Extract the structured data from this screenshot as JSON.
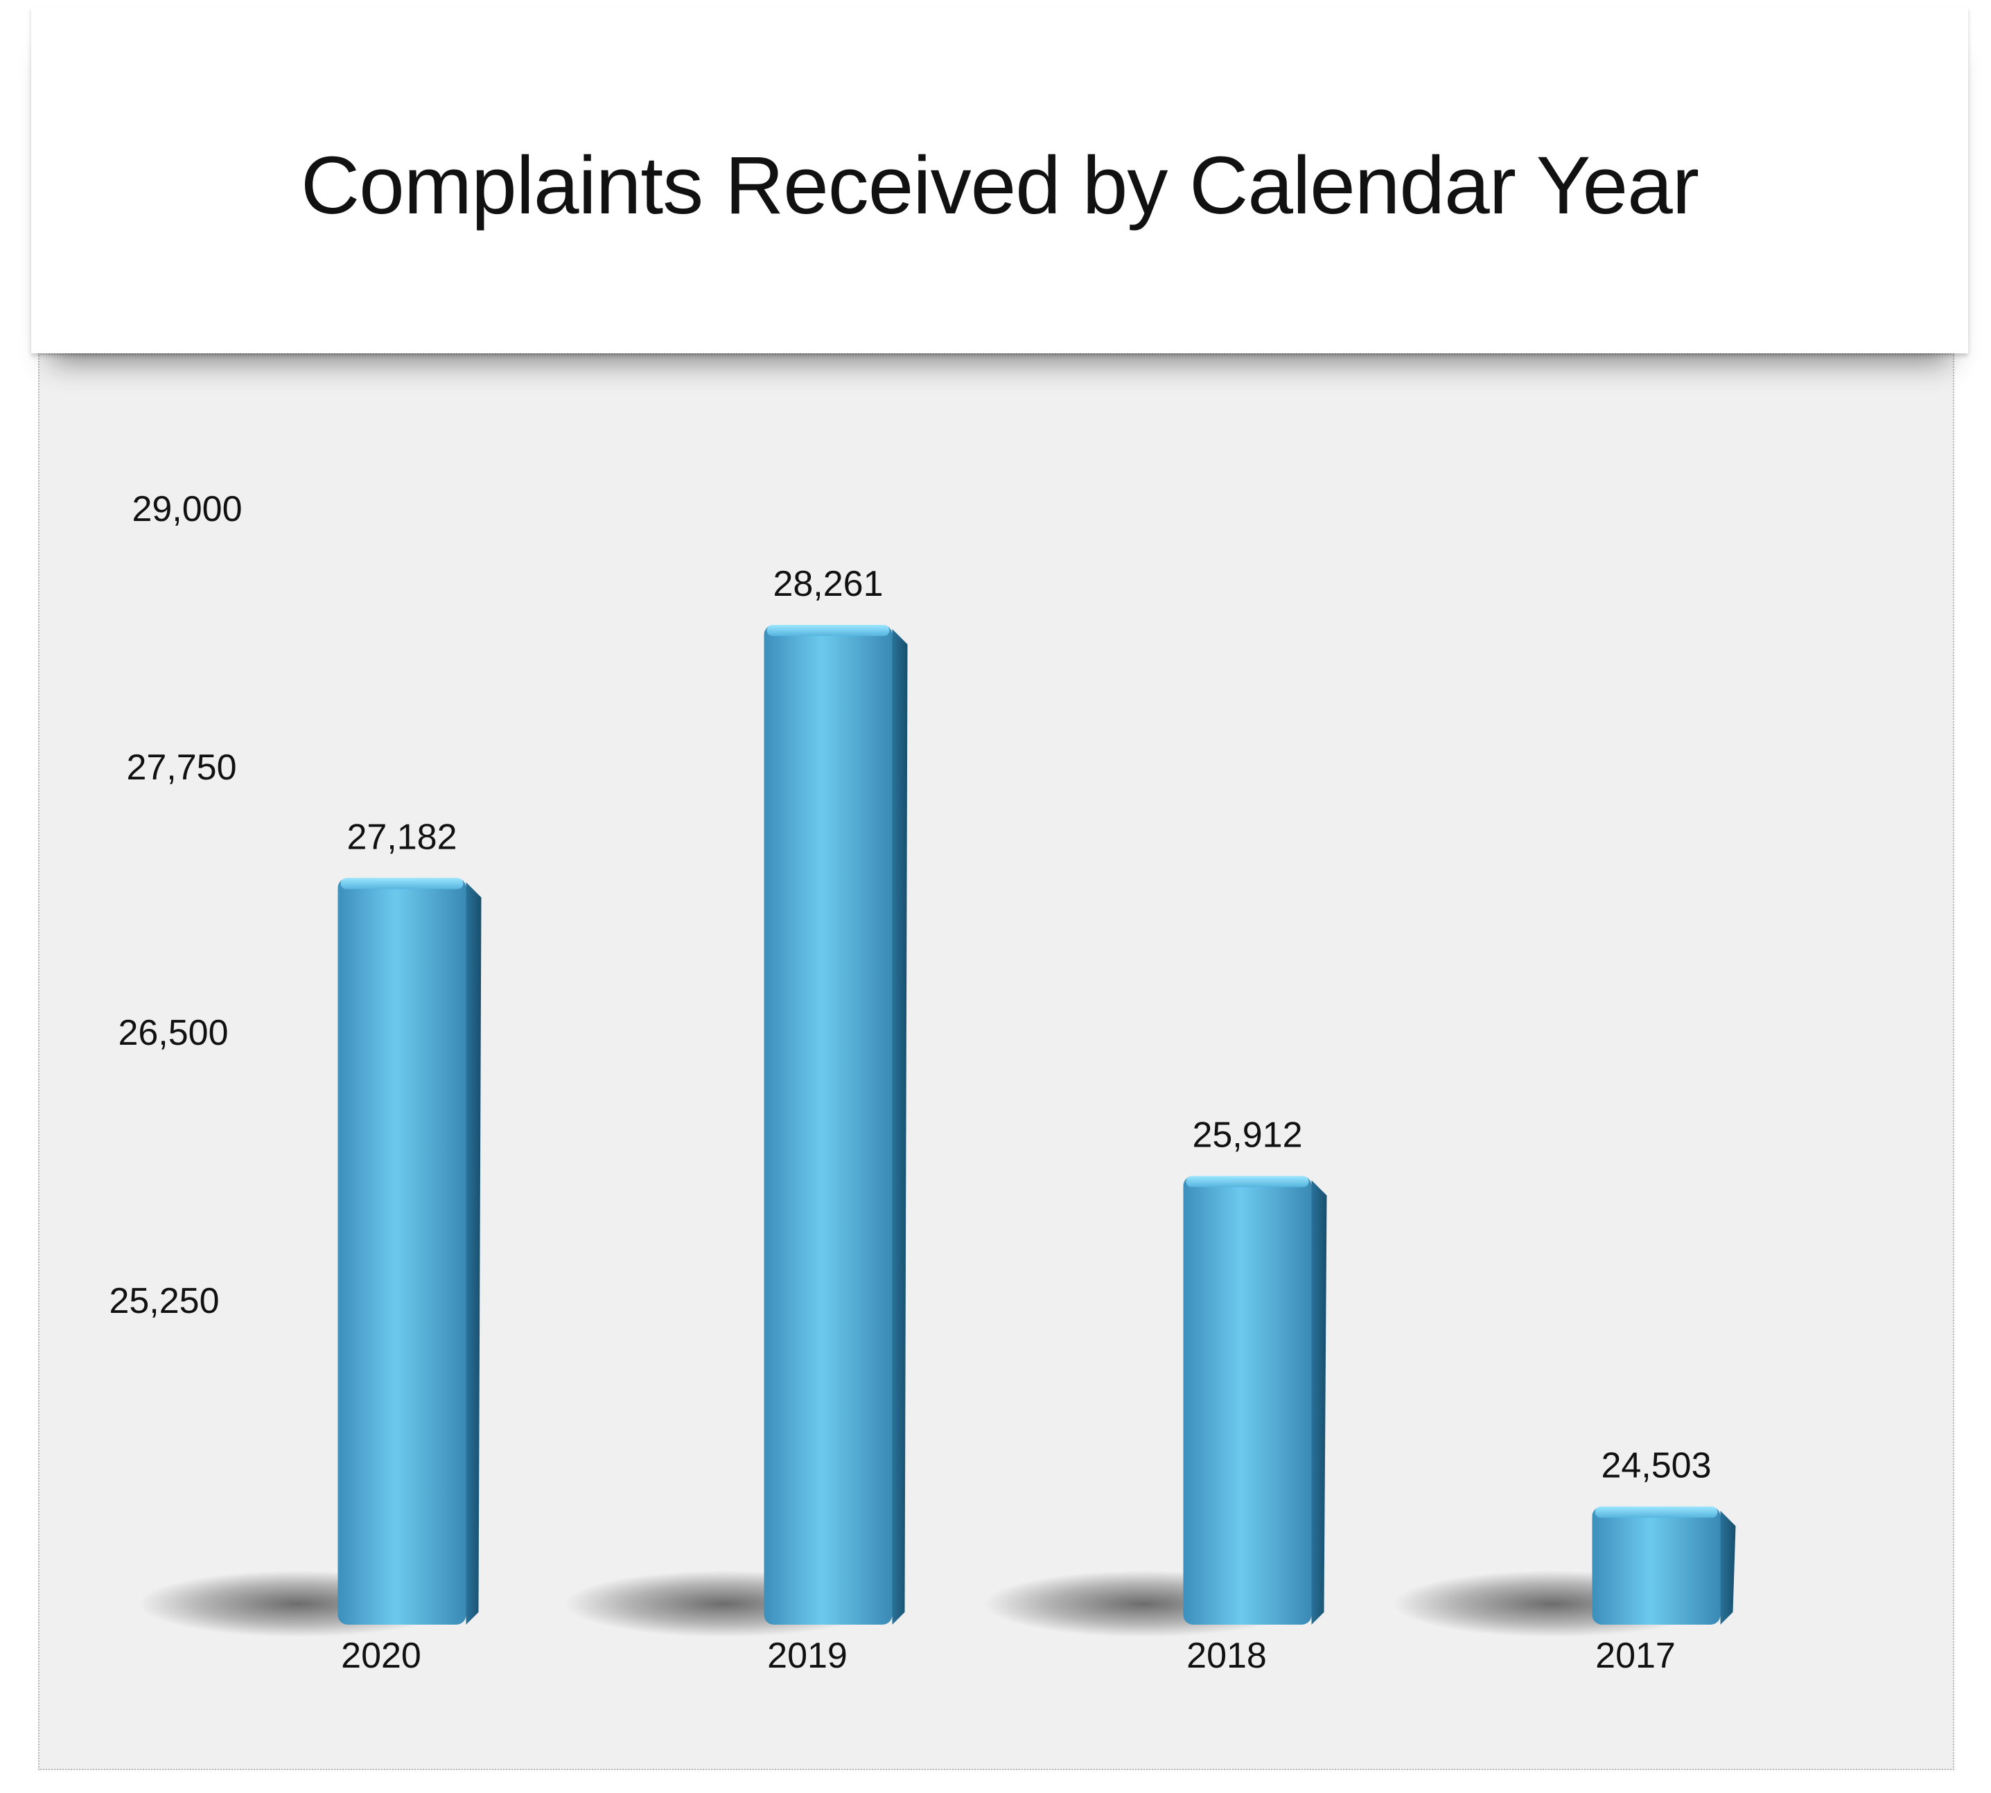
{
  "title": "Complaints Received by Calendar Year",
  "colors": {
    "bar_light": "#7fd9f5",
    "bar_mid": "#4aa6cf",
    "bar_dark": "#1f6688",
    "panel_bg": "#f0f0f0",
    "text": "#111111"
  },
  "chart_data": {
    "type": "bar",
    "title": "Complaints Received by Calendar Year",
    "categories": [
      "2020",
      "2019",
      "2018",
      "2017"
    ],
    "values": [
      27182,
      28261,
      25912,
      24503
    ],
    "data_labels": [
      "27,182",
      "28,261",
      "25,912",
      "24,503"
    ],
    "y_ticks": [
      25250,
      26500,
      27750,
      29000
    ],
    "y_tick_labels": [
      "25,250",
      "26,500",
      "27,750",
      "29,000"
    ],
    "ylim": [
      24000,
      29000
    ],
    "xlabel": "",
    "ylabel": "",
    "grid": false,
    "legend": "none",
    "style": "3d-rounded-columns"
  }
}
